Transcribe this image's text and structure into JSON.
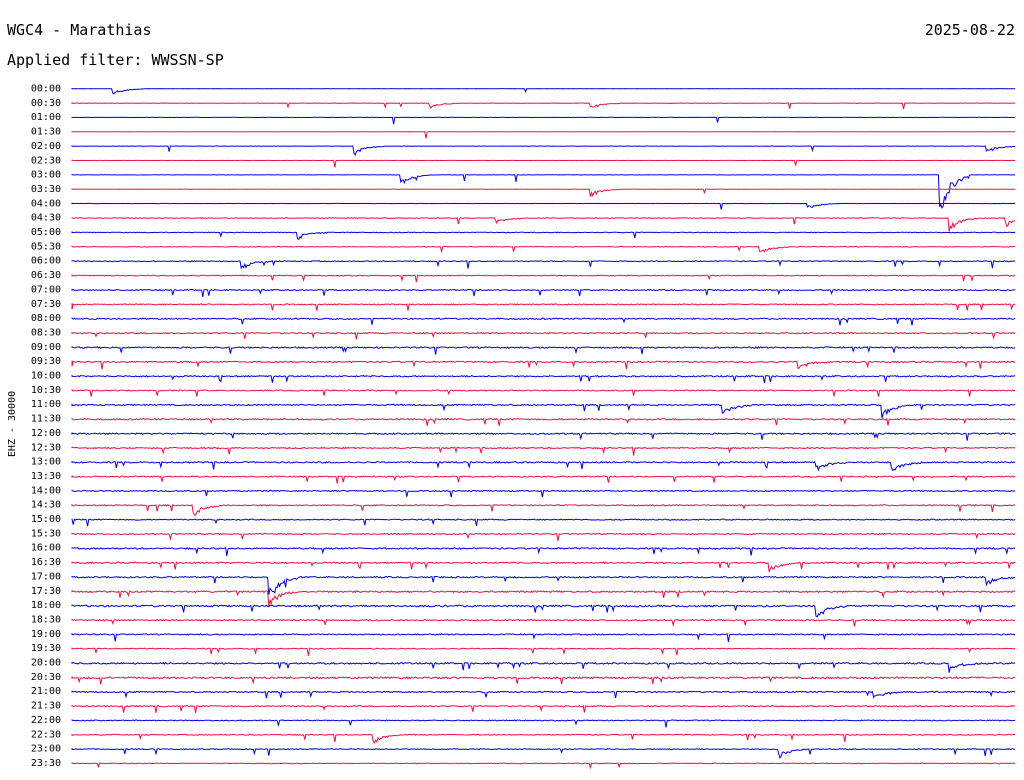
{
  "header": {
    "title": "WGC4 - Marathias",
    "date": "2025-08-22",
    "filter": "Applied filter: WWSSN-SP"
  },
  "colors": {
    "even": "#0000e6",
    "odd": "#ee1144"
  },
  "chart_data": {
    "type": "line",
    "title": "WGC4 - Marathias",
    "ylabel": "EHZ - 30000",
    "row_labels": [
      "00:00",
      "00:30",
      "01:00",
      "01:30",
      "02:00",
      "02:30",
      "03:00",
      "03:30",
      "04:00",
      "04:30",
      "05:00",
      "05:30",
      "06:00",
      "06:30",
      "07:00",
      "07:30",
      "08:00",
      "08:30",
      "09:00",
      "09:30",
      "10:00",
      "10:30",
      "11:00",
      "11:30",
      "12:00",
      "12:30",
      "13:00",
      "13:30",
      "14:00",
      "14:30",
      "15:00",
      "15:30",
      "16:00",
      "16:30",
      "17:00",
      "17:30",
      "18:00",
      "18:30",
      "19:00",
      "19:30",
      "20:00",
      "20:30",
      "21:00",
      "21:30",
      "22:00",
      "22:30",
      "23:00",
      "23:30"
    ],
    "activity": [
      0.1,
      0.2,
      0.1,
      0.1,
      0.12,
      0.1,
      0.15,
      0.12,
      0.1,
      0.3,
      0.3,
      0.3,
      0.4,
      0.4,
      0.5,
      0.5,
      0.55,
      0.55,
      0.6,
      0.6,
      0.6,
      0.5,
      0.6,
      0.6,
      0.6,
      0.6,
      0.6,
      0.5,
      0.5,
      0.5,
      0.5,
      0.5,
      0.6,
      0.6,
      0.6,
      0.75,
      0.75,
      0.6,
      0.5,
      0.4,
      0.7,
      0.8,
      0.6,
      0.5,
      0.4,
      0.4,
      0.4,
      0.3
    ],
    "events": [
      {
        "row": 0,
        "x": 0.045,
        "a": 6
      },
      {
        "row": 1,
        "x": 0.55,
        "a": 6
      },
      {
        "row": 1,
        "x": 0.38,
        "a": 5
      },
      {
        "row": 4,
        "x": 0.3,
        "a": 9
      },
      {
        "row": 4,
        "x": 0.97,
        "a": 7
      },
      {
        "row": 6,
        "x": 0.35,
        "a": 10
      },
      {
        "row": 6,
        "x": 0.92,
        "a": 50
      },
      {
        "row": 7,
        "x": 0.55,
        "a": 8
      },
      {
        "row": 8,
        "x": 0.78,
        "a": 6
      },
      {
        "row": 9,
        "x": 0.45,
        "a": 6
      },
      {
        "row": 9,
        "x": 0.93,
        "a": 14
      },
      {
        "row": 9,
        "x": 0.99,
        "a": 9
      },
      {
        "row": 10,
        "x": 0.24,
        "a": 7
      },
      {
        "row": 11,
        "x": 0.73,
        "a": 7
      },
      {
        "row": 12,
        "x": 0.18,
        "a": 9
      },
      {
        "row": 19,
        "x": 0.77,
        "a": 7
      },
      {
        "row": 22,
        "x": 0.69,
        "a": 12
      },
      {
        "row": 22,
        "x": 0.86,
        "a": 13
      },
      {
        "row": 26,
        "x": 0.79,
        "a": 9
      },
      {
        "row": 26,
        "x": 0.87,
        "a": 11
      },
      {
        "row": 29,
        "x": 0.13,
        "a": 12
      },
      {
        "row": 33,
        "x": 0.74,
        "a": 9
      },
      {
        "row": 34,
        "x": 0.21,
        "a": 24
      },
      {
        "row": 34,
        "x": 0.97,
        "a": 8
      },
      {
        "row": 35,
        "x": 0.21,
        "a": 14
      },
      {
        "row": 36,
        "x": 0.79,
        "a": 12
      },
      {
        "row": 40,
        "x": 0.93,
        "a": 9
      },
      {
        "row": 42,
        "x": 0.85,
        "a": 8
      },
      {
        "row": 45,
        "x": 0.32,
        "a": 9
      },
      {
        "row": 46,
        "x": 0.75,
        "a": 9
      }
    ]
  }
}
